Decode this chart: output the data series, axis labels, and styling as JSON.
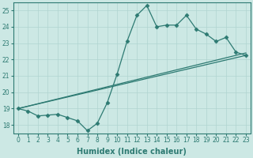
{
  "background_color": "#cce8e4",
  "line_color": "#2d7a72",
  "grid_color": "#b0d4d0",
  "xlabel": "Humidex (Indice chaleur)",
  "xlim": [
    -0.5,
    23.5
  ],
  "ylim": [
    17.5,
    25.5
  ],
  "xticks": [
    0,
    1,
    2,
    3,
    4,
    5,
    6,
    7,
    8,
    9,
    10,
    11,
    12,
    13,
    14,
    15,
    16,
    17,
    18,
    19,
    20,
    21,
    22,
    23
  ],
  "yticks": [
    18,
    19,
    20,
    21,
    22,
    23,
    24,
    25
  ],
  "curve1_x": [
    0,
    1,
    2,
    3,
    4,
    5,
    6,
    7,
    8,
    9,
    10,
    11,
    12,
    13,
    14,
    15,
    16,
    17,
    18,
    19,
    20,
    21,
    22,
    23
  ],
  "curve1_y": [
    19.0,
    18.85,
    18.55,
    18.6,
    18.65,
    18.45,
    18.25,
    17.65,
    18.1,
    19.35,
    21.1,
    23.1,
    24.7,
    25.3,
    24.0,
    24.1,
    24.1,
    24.7,
    23.85,
    23.55,
    23.1,
    23.35,
    22.45,
    22.25
  ],
  "curve2_x": [
    0,
    23
  ],
  "curve2_y": [
    19.0,
    22.4
  ],
  "curve3_x": [
    0,
    23
  ],
  "curve3_y": [
    19.0,
    22.25
  ],
  "marker_style": "D",
  "linewidth": 0.9,
  "markersize": 2.5,
  "tick_fontsize": 5.5,
  "label_fontsize": 7
}
